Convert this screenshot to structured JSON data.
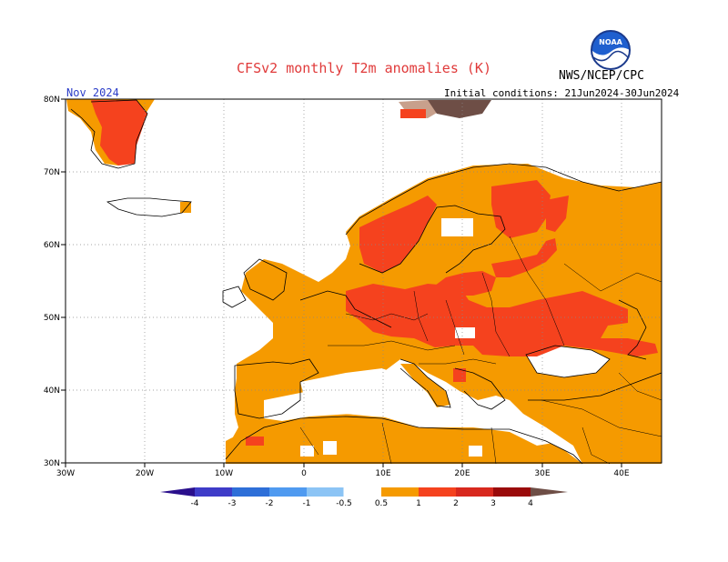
{
  "header": {
    "title": "CFSv2 monthly T2m anomalies (K)",
    "agency": "NWS/NCEP/CPC",
    "logo_text": "NOAA",
    "month": "Nov 2024",
    "initial_conditions": "Initial conditions: 21Jun2024-30Jun2024"
  },
  "map": {
    "lat_labels": [
      "80N",
      "70N",
      "60N",
      "50N",
      "40N",
      "30N"
    ],
    "lon_labels": [
      "30W",
      "20W",
      "10W",
      "0",
      "10E",
      "20E",
      "30E",
      "40E"
    ],
    "extent": {
      "lon": [
        -30,
        45
      ],
      "lat": [
        30,
        80
      ]
    }
  },
  "colorbar": {
    "labels": [
      "-4",
      "-3",
      "-2",
      "-1",
      "-0.5",
      "0.5",
      "1",
      "2",
      "3",
      "4"
    ],
    "colors": [
      "#2a0f8c",
      "#3e3cc8",
      "#2e6fd8",
      "#4f9af0",
      "#8cc4f5",
      "#ffffff",
      "#f59a00",
      "#f5421e",
      "#d8291e",
      "#9a0a0a",
      "#c8a08c",
      "#6e4e46"
    ]
  }
}
